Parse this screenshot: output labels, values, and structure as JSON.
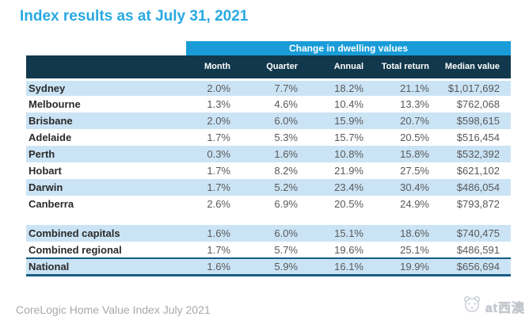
{
  "chart_data": {
    "type": "table",
    "title": "Index results as at July 31, 2021",
    "group_header": "Change in dwelling values",
    "columns": [
      "Month",
      "Quarter",
      "Annual",
      "Total return",
      "Median value"
    ],
    "city_rows": [
      {
        "label": "Sydney",
        "month": "2.0%",
        "quarter": "7.7%",
        "annual": "18.2%",
        "total_return": "21.1%",
        "median_value": "$1,017,692"
      },
      {
        "label": "Melbourne",
        "month": "1.3%",
        "quarter": "4.6%",
        "annual": "10.4%",
        "total_return": "13.3%",
        "median_value": "$762,068"
      },
      {
        "label": "Brisbane",
        "month": "2.0%",
        "quarter": "6.0%",
        "annual": "15.9%",
        "total_return": "20.7%",
        "median_value": "$598,615"
      },
      {
        "label": "Adelaide",
        "month": "1.7%",
        "quarter": "5.3%",
        "annual": "15.7%",
        "total_return": "20.5%",
        "median_value": "$516,454"
      },
      {
        "label": "Perth",
        "month": "0.3%",
        "quarter": "1.6%",
        "annual": "10.8%",
        "total_return": "15.8%",
        "median_value": "$532,392"
      },
      {
        "label": "Hobart",
        "month": "1.7%",
        "quarter": "8.2%",
        "annual": "21.9%",
        "total_return": "27.5%",
        "median_value": "$621,102"
      },
      {
        "label": "Darwin",
        "month": "1.7%",
        "quarter": "5.2%",
        "annual": "23.4%",
        "total_return": "30.4%",
        "median_value": "$486,054"
      },
      {
        "label": "Canberra",
        "month": "2.6%",
        "quarter": "6.9%",
        "annual": "20.5%",
        "total_return": "24.9%",
        "median_value": "$793,872"
      }
    ],
    "summary_rows": [
      {
        "label": "Combined capitals",
        "month": "1.6%",
        "quarter": "6.0%",
        "annual": "15.1%",
        "total_return": "18.6%",
        "median_value": "$740,475"
      },
      {
        "label": "Combined regional",
        "month": "1.7%",
        "quarter": "5.7%",
        "annual": "19.6%",
        "total_return": "25.1%",
        "median_value": "$486,591"
      },
      {
        "label": "National",
        "month": "1.6%",
        "quarter": "5.9%",
        "annual": "16.1%",
        "total_return": "19.9%",
        "median_value": "$656,694"
      }
    ],
    "caption": "CoreLogic Home Value Index July 2021"
  },
  "watermark": {
    "text": "at西澳",
    "icon": "panda-icon"
  },
  "colors": {
    "title_blue": "#29A9E1",
    "banner_blue": "#199CD8",
    "header_navy": "#11384C",
    "stripe_blue": "#CBE4F5",
    "national_border_blue": "#185C85",
    "value_text_gray": "#58595B",
    "caption_gray": "#A7A9AC"
  }
}
